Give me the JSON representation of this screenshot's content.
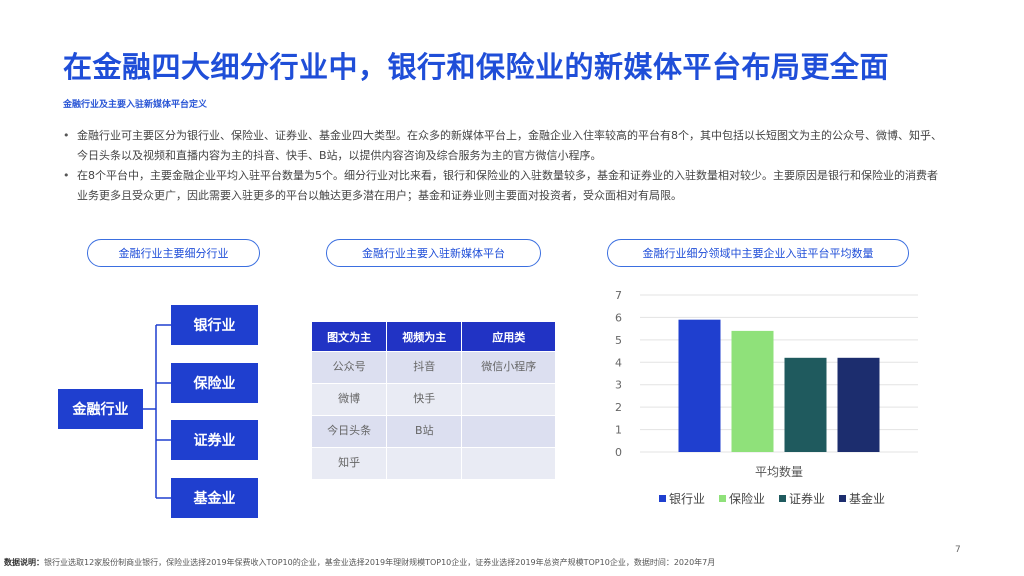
{
  "header": {
    "title": "在金融四大细分行业中，银行和保险业的新媒体平台布局更全面",
    "subtitle": "金融行业及主要入驻新媒体平台定义"
  },
  "bullets": [
    "金融行业可主要区分为银行业、保险业、证券业、基金业四大类型。在众多的新媒体平台上，金融企业入住率较高的平台有8个，其中包括以长短图文为主的公众号、微博、知乎、今日头条以及视频和直播内容为主的抖音、快手、B站，以提供内容咨询及综合服务为主的官方微信小程序。",
    "在8个平台中，主要金融企业平均入驻平台数量为5个。细分行业对比来看，银行和保险业的入驻数量较多，基金和证券业的入驻数量相对较少。主要原因是银行和保险业的消费者业务更多且受众更广，因此需要入驻更多的平台以触达更多潜在用户；基金和证券业则主要面对投资者，受众面相对有局限。"
  ],
  "panels": {
    "industry_title": "金融行业主要细分行业",
    "platform_title": "金融行业主要入驻新媒体平台",
    "chart_title": "金融行业细分领域中主要企业入驻平台平均数量"
  },
  "tree": {
    "root": "金融行业",
    "children": [
      "银行业",
      "保险业",
      "证券业",
      "基金业"
    ]
  },
  "platform_table": {
    "headers": [
      "图文为主",
      "视频为主",
      "应用类"
    ],
    "rows": [
      [
        "公众号",
        "抖音",
        "微信小程序"
      ],
      [
        "微博",
        "快手",
        ""
      ],
      [
        "今日头条",
        "B站",
        ""
      ],
      [
        "知乎",
        "",
        ""
      ]
    ]
  },
  "chart_data": {
    "type": "bar",
    "categories": [
      "平均数量"
    ],
    "xlabel": "平均数量",
    "ylim": [
      0,
      7
    ],
    "yticks": [
      0,
      1,
      2,
      3,
      4,
      5,
      6,
      7
    ],
    "grid": true,
    "legend_position": "bottom",
    "series": [
      {
        "name": "银行业",
        "values": [
          5.9
        ],
        "color": "#1f3fcf"
      },
      {
        "name": "保险业",
        "values": [
          5.4
        ],
        "color": "#8fe17a"
      },
      {
        "name": "证券业",
        "values": [
          4.2
        ],
        "color": "#1f5a5e"
      },
      {
        "name": "基金业",
        "values": [
          4.2
        ],
        "color": "#1c2d6e"
      }
    ]
  },
  "footer": {
    "label": "数据说明：",
    "note": "银行业选取12家股份制商业银行，保险业选择2019年保费收入TOP10的企业，基金业选择2019年理财规模TOP10企业，证券业选择2019年总资产规模TOP10企业，数据时间：2020年7月",
    "page": "7"
  }
}
